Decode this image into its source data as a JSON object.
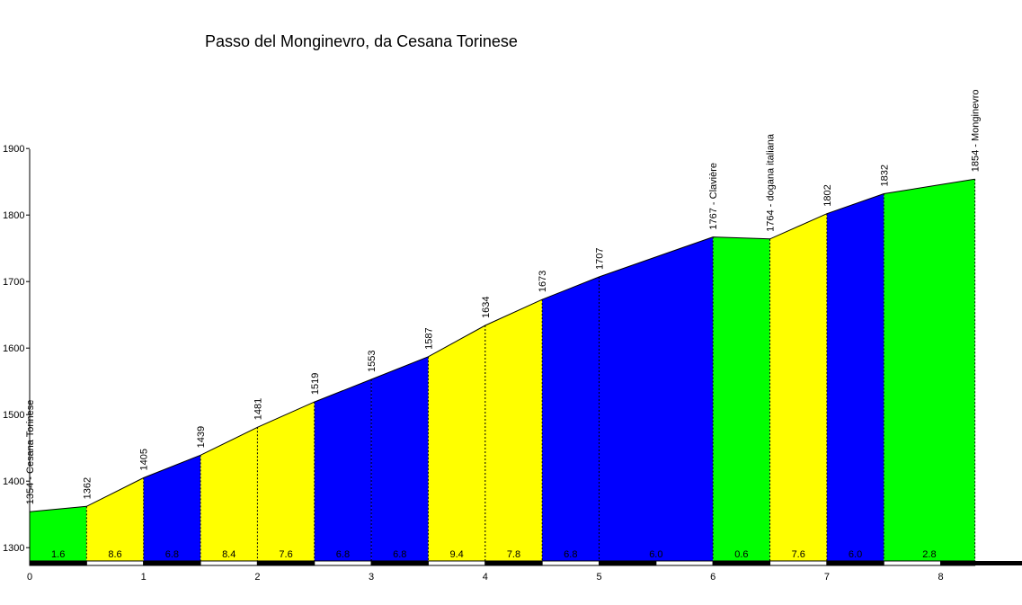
{
  "chart_data": {
    "type": "area",
    "title": "Passo del Monginevro, da Cesana Torinese",
    "xlabel": "",
    "ylabel": "",
    "xlim": [
      0,
      8.3
    ],
    "ylim": [
      1280,
      1900
    ],
    "x_ticks": [
      "0",
      "1",
      "2",
      "3",
      "4",
      "5",
      "6",
      "7",
      "8"
    ],
    "y_ticks": [
      "1300",
      "1400",
      "1500",
      "1600",
      "1700",
      "1800",
      "1900"
    ],
    "points": [
      {
        "x": 0,
        "y": 1354,
        "label": "1354 - Cesana Torinese"
      },
      {
        "x": 0.5,
        "y": 1362,
        "label": "1362"
      },
      {
        "x": 1,
        "y": 1405,
        "label": "1405"
      },
      {
        "x": 1.5,
        "y": 1439,
        "label": "1439"
      },
      {
        "x": 2,
        "y": 1481,
        "label": "1481"
      },
      {
        "x": 2.5,
        "y": 1519,
        "label": "1519"
      },
      {
        "x": 3,
        "y": 1553,
        "label": "1553"
      },
      {
        "x": 3.5,
        "y": 1587,
        "label": "1587"
      },
      {
        "x": 4,
        "y": 1634,
        "label": "1634"
      },
      {
        "x": 4.5,
        "y": 1673,
        "label": "1673"
      },
      {
        "x": 5,
        "y": 1707,
        "label": "1707"
      },
      {
        "x": 6,
        "y": 1767,
        "label": "1767 - Clavière"
      },
      {
        "x": 6.5,
        "y": 1764,
        "label": "1764 - dogana italiana"
      },
      {
        "x": 7,
        "y": 1802,
        "label": "1802"
      },
      {
        "x": 7.5,
        "y": 1832,
        "label": "1832"
      },
      {
        "x": 8.3,
        "y": 1854,
        "label": "1854 - Monginevro"
      }
    ],
    "segments": [
      {
        "from": 0,
        "to": 0.5,
        "gradient": "1.6",
        "color": "#00ff00"
      },
      {
        "from": 0.5,
        "to": 1,
        "gradient": "8.6",
        "color": "#ffff00"
      },
      {
        "from": 1,
        "to": 1.5,
        "gradient": "6.8",
        "color": "#0000ff"
      },
      {
        "from": 1.5,
        "to": 2,
        "gradient": "8.4",
        "color": "#ffff00"
      },
      {
        "from": 2,
        "to": 2.5,
        "gradient": "7.6",
        "color": "#ffff00"
      },
      {
        "from": 2.5,
        "to": 3,
        "gradient": "6.8",
        "color": "#0000ff"
      },
      {
        "from": 3,
        "to": 3.5,
        "gradient": "6.8",
        "color": "#0000ff"
      },
      {
        "from": 3.5,
        "to": 4,
        "gradient": "9.4",
        "color": "#ffff00"
      },
      {
        "from": 4,
        "to": 4.5,
        "gradient": "7.8",
        "color": "#ffff00"
      },
      {
        "from": 4.5,
        "to": 5,
        "gradient": "6.8",
        "color": "#0000ff"
      },
      {
        "from": 5,
        "to": 6,
        "gradient": "6.0",
        "color": "#0000ff"
      },
      {
        "from": 6,
        "to": 6.5,
        "gradient": "0.6",
        "color": "#00ff00"
      },
      {
        "from": 6.5,
        "to": 7,
        "gradient": "7.6",
        "color": "#ffff00"
      },
      {
        "from": 7,
        "to": 7.5,
        "gradient": "6.0",
        "color": "#0000ff"
      },
      {
        "from": 7.5,
        "to": 8.3,
        "gradient": "2.8",
        "color": "#00ff00"
      }
    ],
    "grid": false,
    "legend": "none"
  }
}
